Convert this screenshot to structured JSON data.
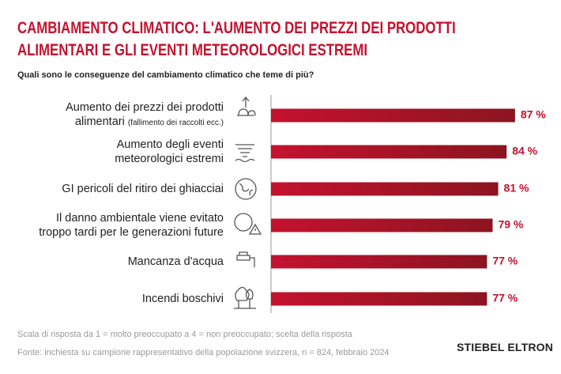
{
  "chart_data": {
    "type": "bar",
    "orientation": "horizontal",
    "title": "CAMBIAMENTO CLIMATICO: L'AUMENTO DEI PREZZI DEI PRODOTTI ALIMENTARI E GLI EVENTI METEOROLOGICI ESTREMI",
    "subtitle": "Quali sono le conseguenze del cambiamento climatico che teme di più?",
    "categories": [
      "Aumento dei prezzi dei prodotti alimentari",
      "Aumento degli eventi meteorologici estremi",
      "GI pericoli del ritiro dei ghiacciai",
      "Il danno ambientale viene evitato troppo tardi per le generazioni future",
      "Mancanza d'acqua",
      "Incendi boschivi"
    ],
    "annotations": [
      {
        "text": "(fallimento dei raccolti ecc.)"
      }
    ],
    "values": [
      87,
      84,
      81,
      79,
      77,
      77
    ],
    "value_labels": [
      "87 %",
      "84 %",
      "81 %",
      "79 %",
      "77 %",
      "77 %"
    ],
    "color": "#c4122f",
    "xlim": [
      0,
      100
    ],
    "notes": [
      "Scala di risposta da 1 = molto preoccupato a 4 = non preoccupato; scelta della risposta",
      "Fonte: inchiesta su campione rappresentativo della popolazione svizzera, n = 824, febbraio 2024"
    ],
    "brand": "STIEBEL ELTRON"
  }
}
